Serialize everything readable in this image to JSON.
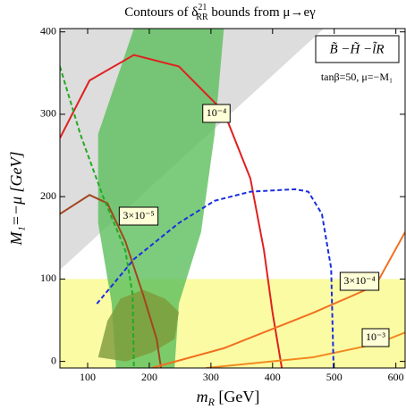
{
  "chart_data": {
    "type": "contour",
    "title": {
      "prefix": "Contours of δ",
      "sup": "21",
      "sub": "RR",
      "suffix": " bounds from μ→eγ"
    },
    "xlabel": {
      "main": "m",
      "sub": "R",
      "unit": " [GeV]"
    },
    "ylabel": "M₁=−μ [GeV]",
    "annotations": [
      "B̃ −H̃ −l̃R",
      "tanβ=50, μ=−M₁"
    ],
    "xlim": [
      55,
      615
    ],
    "ylim": [
      -8,
      404
    ],
    "xticks": [
      100,
      200,
      300,
      400,
      500,
      600
    ],
    "yticks": [
      0,
      100,
      200,
      300,
      400
    ],
    "regions": [
      {
        "color": "#d4d4d4",
        "x": [
          55,
          483,
          55
        ],
        "y": [
          404,
          404,
          111
        ]
      },
      {
        "color": "#fafa8c",
        "x": [
          55,
          615,
          615,
          55
        ],
        "y": [
          -8,
          -8,
          100,
          100
        ]
      },
      {
        "color": "#5cbf5c",
        "x": [
          175,
          117,
          117,
          139,
          146,
          241,
          248,
          284,
          306,
          321
        ],
        "y": [
          404,
          276,
          168,
          70,
          -8,
          -8,
          70,
          157,
          276,
          404
        ]
      },
      {
        "color": "#7d9a3a",
        "x": [
          117,
          132,
          153,
          190,
          226,
          248,
          241,
          205,
          162
        ],
        "y": [
          5,
          49,
          76,
          87,
          76,
          60,
          27,
          11,
          0
        ]
      }
    ],
    "series": [
      {
        "name": "10⁻⁴",
        "color": "#e02020",
        "x": [
          55,
          103,
          175,
          248,
          321,
          364,
          386,
          400,
          415
        ],
        "values": [
          271,
          341,
          372,
          358,
          303,
          222,
          135,
          59,
          -8
        ]
      },
      {
        "name": "3×10⁻⁵",
        "color": "#a2461e",
        "x": [
          55,
          103,
          132,
          161,
          190,
          212,
          219
        ],
        "values": [
          179,
          202,
          192,
          146,
          81,
          27,
          -8
        ]
      },
      {
        "name": "3×10⁻⁴",
        "color": "#f07020",
        "x": [
          204,
          321,
          466,
          567,
          615
        ],
        "values": [
          -8,
          16,
          59,
          92,
          157
        ]
      },
      {
        "name": "10⁻³",
        "color": "#f08a20",
        "x": [
          292,
          466,
          567,
          615
        ],
        "values": [
          -8,
          5,
          21,
          35
        ]
      },
      {
        "color": "#22aa22",
        "dashed": true,
        "x": [
          55,
          88,
          125,
          161,
          173,
          175
        ],
        "values": [
          358,
          276,
          200,
          135,
          81,
          -8
        ]
      },
      {
        "color": "#1a2ee0",
        "dashed": true,
        "x": [
          115,
          175,
          248,
          306,
          364,
          437,
          458,
          480,
          495,
          499
        ],
        "values": [
          70,
          124,
          168,
          195,
          206,
          209,
          206,
          179,
          113,
          -8
        ]
      }
    ]
  }
}
